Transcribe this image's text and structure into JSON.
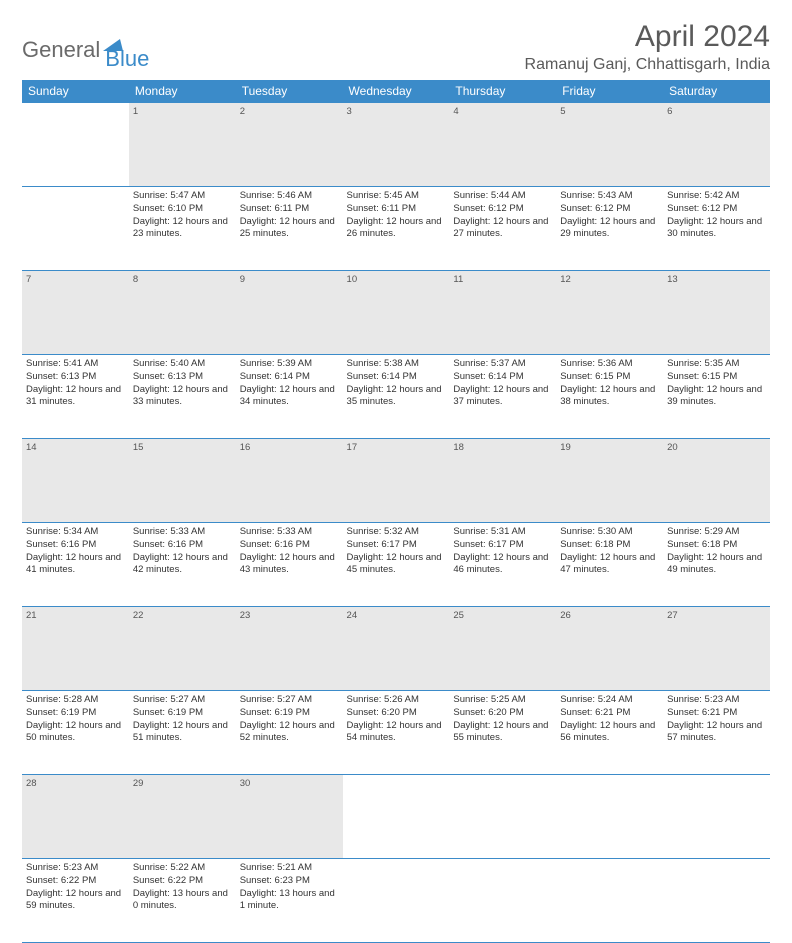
{
  "logo": {
    "part1": "General",
    "part2": "Blue"
  },
  "title": "April 2024",
  "location": "Ramanuj Ganj, Chhattisgarh, India",
  "colors": {
    "header_bg": "#3b8bc9",
    "header_text": "#ffffff",
    "daynum_bg": "#e8e8e8",
    "border": "#3b8bc9",
    "text": "#333333",
    "logo_gray": "#6a6a6a",
    "logo_blue": "#3b8bc9"
  },
  "weekdays": [
    "Sunday",
    "Monday",
    "Tuesday",
    "Wednesday",
    "Thursday",
    "Friday",
    "Saturday"
  ],
  "weeks": [
    {
      "nums": [
        "",
        "1",
        "2",
        "3",
        "4",
        "5",
        "6"
      ],
      "cells": [
        null,
        {
          "sunrise": "5:47 AM",
          "sunset": "6:10 PM",
          "daylight": "12 hours and 23 minutes."
        },
        {
          "sunrise": "5:46 AM",
          "sunset": "6:11 PM",
          "daylight": "12 hours and 25 minutes."
        },
        {
          "sunrise": "5:45 AM",
          "sunset": "6:11 PM",
          "daylight": "12 hours and 26 minutes."
        },
        {
          "sunrise": "5:44 AM",
          "sunset": "6:12 PM",
          "daylight": "12 hours and 27 minutes."
        },
        {
          "sunrise": "5:43 AM",
          "sunset": "6:12 PM",
          "daylight": "12 hours and 29 minutes."
        },
        {
          "sunrise": "5:42 AM",
          "sunset": "6:12 PM",
          "daylight": "12 hours and 30 minutes."
        }
      ]
    },
    {
      "nums": [
        "7",
        "8",
        "9",
        "10",
        "11",
        "12",
        "13"
      ],
      "cells": [
        {
          "sunrise": "5:41 AM",
          "sunset": "6:13 PM",
          "daylight": "12 hours and 31 minutes."
        },
        {
          "sunrise": "5:40 AM",
          "sunset": "6:13 PM",
          "daylight": "12 hours and 33 minutes."
        },
        {
          "sunrise": "5:39 AM",
          "sunset": "6:14 PM",
          "daylight": "12 hours and 34 minutes."
        },
        {
          "sunrise": "5:38 AM",
          "sunset": "6:14 PM",
          "daylight": "12 hours and 35 minutes."
        },
        {
          "sunrise": "5:37 AM",
          "sunset": "6:14 PM",
          "daylight": "12 hours and 37 minutes."
        },
        {
          "sunrise": "5:36 AM",
          "sunset": "6:15 PM",
          "daylight": "12 hours and 38 minutes."
        },
        {
          "sunrise": "5:35 AM",
          "sunset": "6:15 PM",
          "daylight": "12 hours and 39 minutes."
        }
      ]
    },
    {
      "nums": [
        "14",
        "15",
        "16",
        "17",
        "18",
        "19",
        "20"
      ],
      "cells": [
        {
          "sunrise": "5:34 AM",
          "sunset": "6:16 PM",
          "daylight": "12 hours and 41 minutes."
        },
        {
          "sunrise": "5:33 AM",
          "sunset": "6:16 PM",
          "daylight": "12 hours and 42 minutes."
        },
        {
          "sunrise": "5:33 AM",
          "sunset": "6:16 PM",
          "daylight": "12 hours and 43 minutes."
        },
        {
          "sunrise": "5:32 AM",
          "sunset": "6:17 PM",
          "daylight": "12 hours and 45 minutes."
        },
        {
          "sunrise": "5:31 AM",
          "sunset": "6:17 PM",
          "daylight": "12 hours and 46 minutes."
        },
        {
          "sunrise": "5:30 AM",
          "sunset": "6:18 PM",
          "daylight": "12 hours and 47 minutes."
        },
        {
          "sunrise": "5:29 AM",
          "sunset": "6:18 PM",
          "daylight": "12 hours and 49 minutes."
        }
      ]
    },
    {
      "nums": [
        "21",
        "22",
        "23",
        "24",
        "25",
        "26",
        "27"
      ],
      "cells": [
        {
          "sunrise": "5:28 AM",
          "sunset": "6:19 PM",
          "daylight": "12 hours and 50 minutes."
        },
        {
          "sunrise": "5:27 AM",
          "sunset": "6:19 PM",
          "daylight": "12 hours and 51 minutes."
        },
        {
          "sunrise": "5:27 AM",
          "sunset": "6:19 PM",
          "daylight": "12 hours and 52 minutes."
        },
        {
          "sunrise": "5:26 AM",
          "sunset": "6:20 PM",
          "daylight": "12 hours and 54 minutes."
        },
        {
          "sunrise": "5:25 AM",
          "sunset": "6:20 PM",
          "daylight": "12 hours and 55 minutes."
        },
        {
          "sunrise": "5:24 AM",
          "sunset": "6:21 PM",
          "daylight": "12 hours and 56 minutes."
        },
        {
          "sunrise": "5:23 AM",
          "sunset": "6:21 PM",
          "daylight": "12 hours and 57 minutes."
        }
      ]
    },
    {
      "nums": [
        "28",
        "29",
        "30",
        "",
        "",
        "",
        ""
      ],
      "cells": [
        {
          "sunrise": "5:23 AM",
          "sunset": "6:22 PM",
          "daylight": "12 hours and 59 minutes."
        },
        {
          "sunrise": "5:22 AM",
          "sunset": "6:22 PM",
          "daylight": "13 hours and 0 minutes."
        },
        {
          "sunrise": "5:21 AM",
          "sunset": "6:23 PM",
          "daylight": "13 hours and 1 minute."
        },
        null,
        null,
        null,
        null
      ]
    }
  ]
}
